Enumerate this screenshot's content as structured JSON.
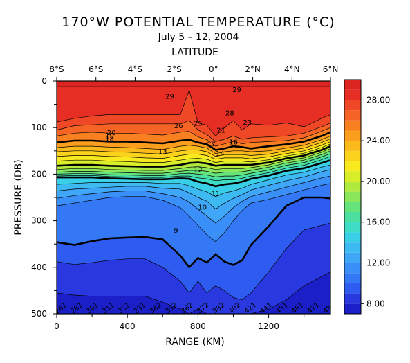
{
  "chart_data": {
    "type": "heatmap",
    "title": "170°W POTENTIAL TEMPERATURE (°C)",
    "subtitle": "July 5 – 12, 2004",
    "top_axis_label": "LATITUDE",
    "xlabel": "RANGE (KM)",
    "ylabel": "PRESSURE (DB)",
    "x_ticks": [
      "0",
      "400",
      "800",
      "1200"
    ],
    "x_tick_values": [
      0,
      400,
      800,
      1200
    ],
    "xlim": [
      0,
      1550
    ],
    "y_ticks": [
      "0",
      "100",
      "200",
      "300",
      "400",
      "500"
    ],
    "y_tick_values": [
      0,
      100,
      200,
      300,
      400,
      500
    ],
    "ylim": [
      0,
      500
    ],
    "lat_ticks": [
      "8°S",
      "6°S",
      "4°S",
      "2°S",
      "0°",
      "2°N",
      "4°N",
      "6°N"
    ],
    "lat_tick_range_km": [
      0,
      222,
      444,
      666,
      888,
      1110,
      1332,
      1554
    ],
    "colorbar_ticks": [
      "8.00",
      "12.00",
      "16.00",
      "20.00",
      "24.00",
      "28.00"
    ],
    "colorbar_tick_values": [
      8,
      12,
      16,
      20,
      24,
      28
    ],
    "colorbar_range": [
      7,
      30
    ],
    "contour_interval": 1,
    "thick_contours": [
      10,
      15,
      20,
      25
    ],
    "colors": [
      "#1a1fc8",
      "#2a38e0",
      "#2e5cf0",
      "#3478f6",
      "#3a90f8",
      "#3fa6f8",
      "#3ebaf2",
      "#39cfe6",
      "#3fdcc6",
      "#4be0a0",
      "#66e37a",
      "#8ae65a",
      "#b0ea3e",
      "#d8ee28",
      "#f8ea1e",
      "#fbd21c",
      "#fbba1c",
      "#fb9e1e",
      "#f98020",
      "#f56424",
      "#ef4826",
      "#e72e24",
      "#dc2420"
    ],
    "isotherm_depths": {
      "x_km": [
        0,
        100,
        200,
        300,
        400,
        500,
        600,
        700,
        750,
        800,
        850,
        900,
        950,
        1000,
        1050,
        1100,
        1200,
        1300,
        1400,
        1500,
        1550
      ],
      "levels": [
        {
          "t": 29,
          "z": [
            12,
            12,
            12,
            12,
            12,
            12,
            12,
            12,
            12,
            12,
            12,
            12,
            12,
            12,
            12,
            12,
            12,
            12,
            12,
            12,
            12
          ]
        },
        {
          "t": 28,
          "z": [
            88,
            80,
            75,
            72,
            72,
            72,
            72,
            72,
            20,
            90,
            95,
            118,
            100,
            85,
            105,
            92,
            95,
            90,
            98,
            80,
            72
          ]
        },
        {
          "t": 27,
          "z": [
            105,
            96,
            94,
            92,
            92,
            92,
            92,
            92,
            85,
            105,
            115,
            130,
            125,
            118,
            125,
            122,
            120,
            118,
            112,
            98,
            90
          ]
        },
        {
          "t": 26,
          "z": [
            118,
            112,
            110,
            112,
            112,
            114,
            116,
            110,
            108,
            120,
            126,
            140,
            135,
            130,
            135,
            132,
            130,
            128,
            122,
            108,
            100
          ]
        },
        {
          "t": 25,
          "z": [
            132,
            128,
            128,
            130,
            130,
            132,
            134,
            128,
            126,
            132,
            136,
            148,
            145,
            140,
            142,
            145,
            140,
            136,
            130,
            118,
            110
          ]
        },
        {
          "t": 24,
          "z": [
            143,
            140,
            140,
            142,
            143,
            145,
            147,
            140,
            138,
            140,
            144,
            156,
            152,
            150,
            150,
            152,
            150,
            144,
            138,
            126,
            118
          ]
        },
        {
          "t": 23,
          "z": [
            152,
            150,
            150,
            152,
            153,
            155,
            157,
            150,
            148,
            148,
            152,
            162,
            158,
            158,
            158,
            160,
            157,
            150,
            144,
            132,
            124
          ]
        },
        {
          "t": 22,
          "z": [
            162,
            160,
            160,
            162,
            163,
            165,
            166,
            160,
            157,
            157,
            160,
            168,
            165,
            165,
            165,
            167,
            163,
            156,
            150,
            138,
            130
          ]
        },
        {
          "t": 21,
          "z": [
            172,
            170,
            170,
            172,
            173,
            175,
            175,
            170,
            167,
            166,
            168,
            175,
            172,
            172,
            172,
            174,
            169,
            161,
            155,
            143,
            135
          ]
        },
        {
          "t": 20,
          "z": [
            182,
            180,
            180,
            182,
            183,
            184,
            184,
            180,
            176,
            175,
            177,
            182,
            180,
            180,
            180,
            180,
            175,
            166,
            160,
            148,
            140
          ]
        },
        {
          "t": 19,
          "z": [
            190,
            188,
            188,
            190,
            191,
            192,
            192,
            188,
            185,
            184,
            186,
            190,
            188,
            188,
            188,
            186,
            180,
            171,
            165,
            153,
            145
          ]
        },
        {
          "t": 18,
          "z": [
            196,
            194,
            194,
            196,
            197,
            198,
            198,
            194,
            192,
            192,
            194,
            198,
            196,
            196,
            195,
            192,
            185,
            176,
            170,
            158,
            150
          ]
        },
        {
          "t": 17,
          "z": [
            200,
            199,
            199,
            201,
            202,
            203,
            203,
            199,
            198,
            200,
            202,
            206,
            204,
            204,
            202,
            198,
            191,
            181,
            175,
            163,
            156
          ]
        },
        {
          "t": 16,
          "z": [
            204,
            203,
            203,
            205,
            206,
            207,
            207,
            204,
            204,
            208,
            210,
            214,
            212,
            212,
            209,
            204,
            197,
            187,
            181,
            169,
            162
          ]
        },
        {
          "t": 15,
          "z": [
            207,
            207,
            207,
            209,
            210,
            211,
            211,
            209,
            210,
            216,
            220,
            226,
            222,
            220,
            216,
            210,
            203,
            193,
            187,
            176,
            170
          ]
        },
        {
          "t": 14,
          "z": [
            222,
            220,
            218,
            218,
            218,
            218,
            220,
            220,
            225,
            232,
            238,
            248,
            240,
            236,
            230,
            222,
            212,
            202,
            196,
            185,
            180
          ]
        },
        {
          "t": 13,
          "z": [
            236,
            232,
            230,
            228,
            226,
            226,
            230,
            232,
            240,
            250,
            258,
            275,
            262,
            252,
            244,
            234,
            224,
            214,
            206,
            195,
            190
          ]
        },
        {
          "t": 12,
          "z": [
            252,
            246,
            242,
            238,
            236,
            236,
            242,
            250,
            260,
            275,
            290,
            305,
            290,
            272,
            258,
            248,
            238,
            228,
            218,
            208,
            204
          ]
        },
        {
          "t": 11,
          "z": [
            268,
            262,
            256,
            250,
            248,
            248,
            256,
            272,
            290,
            310,
            330,
            345,
            325,
            300,
            278,
            262,
            254,
            244,
            234,
            224,
            220
          ]
        },
        {
          "t": 10,
          "z": [
            346,
            352,
            344,
            338,
            336,
            335,
            340,
            375,
            400,
            380,
            390,
            372,
            388,
            395,
            385,
            352,
            312,
            268,
            250,
            250,
            252
          ]
        },
        {
          "t": 9,
          "z": [
            388,
            394,
            390,
            385,
            382,
            382,
            400,
            430,
            455,
            430,
            455,
            440,
            450,
            465,
            470,
            455,
            410,
            360,
            320,
            310,
            305
          ]
        },
        {
          "t": 8,
          "z": [
            455,
            460,
            462,
            462,
            462,
            462,
            475,
            490,
            500,
            490,
            500,
            500,
            500,
            500,
            500,
            500,
            490,
            470,
            440,
            420,
            410
          ]
        }
      ]
    },
    "contour_labels": [
      {
        "text": "29",
        "x_km": 640,
        "z": 32
      },
      {
        "text": "29",
        "x_km": 1020,
        "z": 18
      },
      {
        "text": "28",
        "x_km": 980,
        "z": 68
      },
      {
        "text": "26",
        "x_km": 690,
        "z": 95
      },
      {
        "text": "25",
        "x_km": 800,
        "z": 90
      },
      {
        "text": "23",
        "x_km": 1080,
        "z": 88
      },
      {
        "text": "20",
        "x_km": 310,
        "z": 110
      },
      {
        "text": "19",
        "x_km": 300,
        "z": 117
      },
      {
        "text": "18",
        "x_km": 300,
        "z": 123
      },
      {
        "text": "21",
        "x_km": 930,
        "z": 105
      },
      {
        "text": "17",
        "x_km": 875,
        "z": 135
      },
      {
        "text": "16",
        "x_km": 1000,
        "z": 130
      },
      {
        "text": "14",
        "x_km": 925,
        "z": 155
      },
      {
        "text": "13",
        "x_km": 600,
        "z": 150
      },
      {
        "text": "12",
        "x_km": 800,
        "z": 190
      },
      {
        "text": "11",
        "x_km": 900,
        "z": 240
      },
      {
        "text": "10",
        "x_km": 825,
        "z": 270
      },
      {
        "text": "9",
        "x_km": 675,
        "z": 320
      }
    ],
    "bottom_labels": [
      "261",
      "281",
      "301",
      "311",
      "321",
      "331",
      "342",
      "352",
      "362",
      "372",
      "382",
      "402",
      "421",
      "441",
      "451",
      "461",
      "471",
      "481"
    ]
  }
}
